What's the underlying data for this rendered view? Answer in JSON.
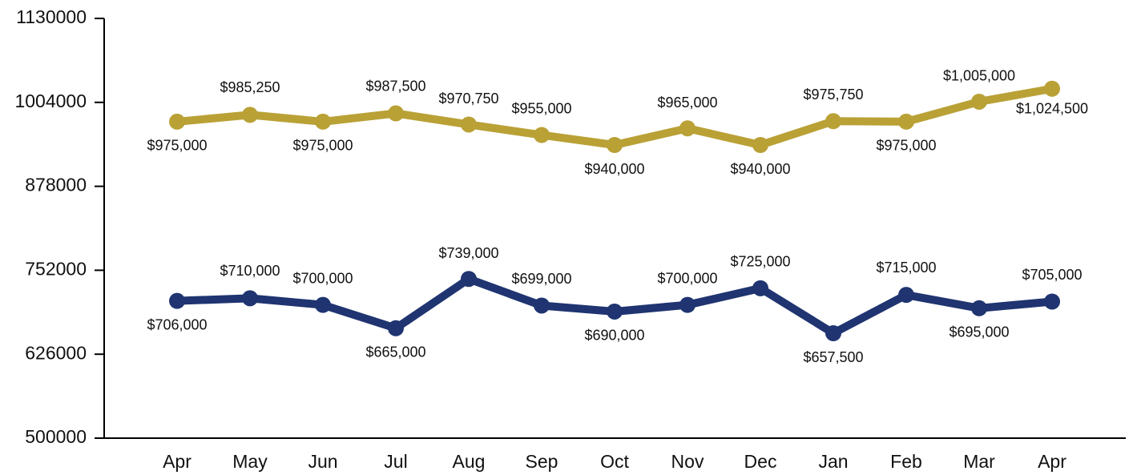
{
  "chart_data": {
    "type": "line",
    "categories": [
      "Apr",
      "May",
      "Jun",
      "Jul",
      "Aug",
      "Sep",
      "Oct",
      "Nov",
      "Dec",
      "Jan",
      "Feb",
      "Mar",
      "Apr"
    ],
    "series": [
      {
        "color": "#b9a136",
        "values": [
          975000,
          985250,
          975000,
          987500,
          970750,
          955000,
          940000,
          965000,
          940000,
          975750,
          975000,
          1005000,
          1024500
        ],
        "value_labels": [
          "$975,000",
          "$985,250",
          "$975,000",
          "$987,500",
          "$970,750",
          "$955,000",
          "$940,000",
          "$965,000",
          "$940,000",
          "$975,750",
          "$975,000",
          "$1,005,000",
          "$1,024,500"
        ]
      },
      {
        "color": "#1f3470",
        "values": [
          706000,
          710000,
          700000,
          665000,
          739000,
          699000,
          690000,
          700000,
          725000,
          657500,
          715000,
          695000,
          705000
        ],
        "value_labels": [
          "$706,000",
          "$710,000",
          "$700,000",
          "$665,000",
          "$739,000",
          "$699,000",
          "$690,000",
          "$700,000",
          "$725,000",
          "$657,500",
          "$715,000",
          "$695,000",
          "$705,000"
        ]
      }
    ],
    "ylim": [
      500000,
      1130000
    ],
    "yticks": [
      500000,
      626000,
      752000,
      878000,
      1004000,
      1130000
    ],
    "grid": false
  }
}
